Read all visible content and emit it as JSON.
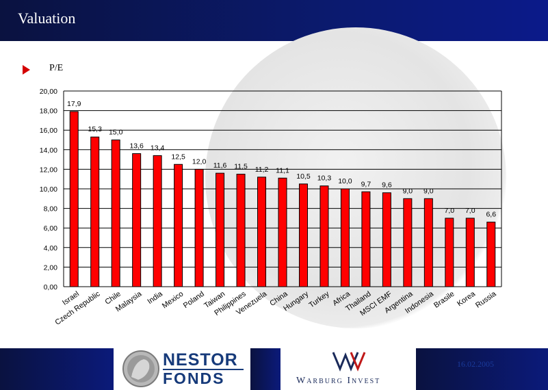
{
  "header": {
    "title": "Valuation"
  },
  "subtitle": "P/E",
  "chart_data": {
    "type": "bar",
    "title": "",
    "xlabel": "",
    "ylabel": "",
    "ylim": [
      0,
      20
    ],
    "yticks": [
      "0,00",
      "2,00",
      "4,00",
      "6,00",
      "8,00",
      "10,00",
      "12,00",
      "14,00",
      "16,00",
      "18,00",
      "20,00"
    ],
    "grid": true,
    "categories": [
      "Israel",
      "Czech Republic",
      "Chile",
      "Malaysia",
      "India",
      "Mexico",
      "Poland",
      "Taiwan",
      "Philippines",
      "Venezuela",
      "China",
      "Hungary",
      "Turkey",
      "Africa",
      "Thailand",
      "MSCI EMF",
      "Argentina",
      "Indonesia",
      "Brasile",
      "Korea",
      "Russia"
    ],
    "values": [
      17.9,
      15.3,
      15.0,
      13.6,
      13.4,
      12.5,
      12.0,
      11.6,
      11.5,
      11.2,
      11.1,
      10.5,
      10.3,
      10.0,
      9.7,
      9.6,
      9.0,
      9.0,
      7.0,
      7.0,
      6.6
    ],
    "value_labels": [
      "17,9",
      "15,3",
      "15,0",
      "13,6",
      "13,4",
      "12,5",
      "12,0",
      "11,6",
      "11,5",
      "11,2",
      "11,1",
      "10,5",
      "10,3",
      "10,0",
      "9,7",
      "9,6",
      "9,0",
      "9,0",
      "7,0",
      "7,0",
      "6,6"
    ],
    "bar_color": "#ff0000"
  },
  "footer": {
    "logo1_line1": "NESTOR",
    "logo1_line2": "FONDS",
    "logo2_text": "Warburg Invest",
    "date": "16.02.2005",
    "colors": {
      "band": "#0b1a7a"
    }
  }
}
